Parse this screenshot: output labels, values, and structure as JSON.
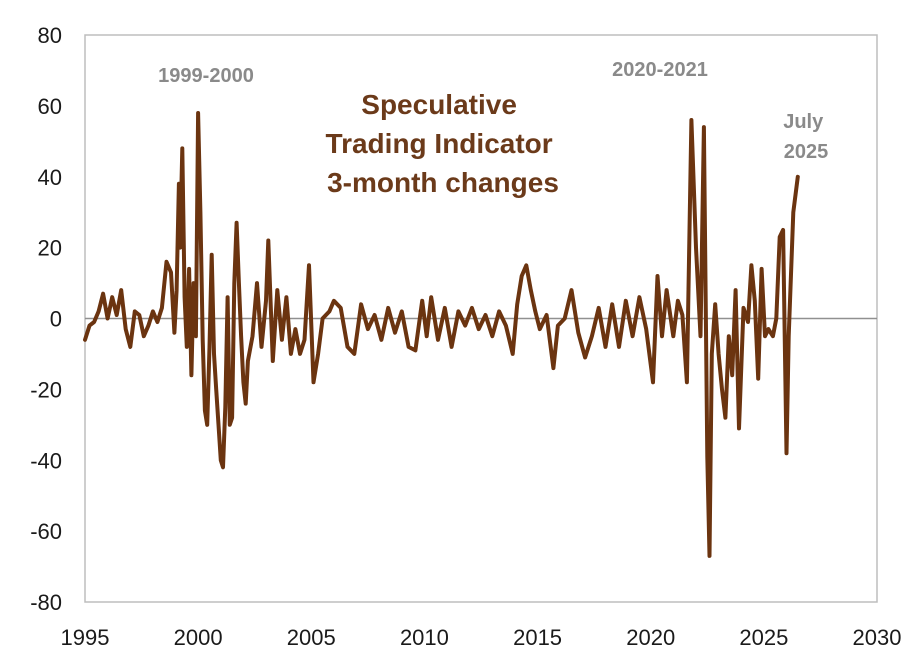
{
  "chart_data": {
    "type": "line",
    "title_lines": [
      "Speculative",
      "Trading Indicator",
      "3-month changes"
    ],
    "xlabel": "",
    "ylabel": "",
    "xlim": [
      1995,
      2030
    ],
    "ylim": [
      -80,
      80
    ],
    "x_ticks": [
      "1995",
      "2000",
      "2005",
      "2010",
      "2015",
      "2020",
      "2025",
      "2030"
    ],
    "y_ticks": [
      "80",
      "60",
      "40",
      "20",
      "0",
      "-20",
      "-40",
      "-60",
      "-80"
    ],
    "grid": false,
    "legend": "none",
    "line_color": "#6b3410",
    "annotations": [
      {
        "id": "annot-1999",
        "lines": [
          "1999-2000"
        ]
      },
      {
        "id": "annot-2020",
        "lines": [
          "2020-2021"
        ]
      },
      {
        "id": "annot-2025",
        "lines": [
          "July",
          "2025"
        ]
      }
    ],
    "series": [
      {
        "points": [
          [
            1995.0,
            -6
          ],
          [
            1995.2,
            -2
          ],
          [
            1995.4,
            -1
          ],
          [
            1995.6,
            2
          ],
          [
            1995.8,
            7
          ],
          [
            1996.0,
            0
          ],
          [
            1996.2,
            6
          ],
          [
            1996.4,
            1
          ],
          [
            1996.6,
            8
          ],
          [
            1996.8,
            -3
          ],
          [
            1997.0,
            -8
          ],
          [
            1997.2,
            2
          ],
          [
            1997.4,
            1
          ],
          [
            1997.6,
            -5
          ],
          [
            1997.8,
            -2
          ],
          [
            1998.0,
            2
          ],
          [
            1998.2,
            -1
          ],
          [
            1998.4,
            3
          ],
          [
            1998.6,
            16
          ],
          [
            1998.8,
            13
          ],
          [
            1998.95,
            -4
          ],
          [
            1999.05,
            8
          ],
          [
            1999.15,
            38
          ],
          [
            1999.2,
            20
          ],
          [
            1999.3,
            48
          ],
          [
            1999.4,
            6
          ],
          [
            1999.5,
            -8
          ],
          [
            1999.6,
            14
          ],
          [
            1999.7,
            -16
          ],
          [
            1999.8,
            10
          ],
          [
            1999.9,
            -5
          ],
          [
            2000.0,
            58
          ],
          [
            2000.1,
            30
          ],
          [
            2000.2,
            -6
          ],
          [
            2000.3,
            -26
          ],
          [
            2000.4,
            -30
          ],
          [
            2000.5,
            -8
          ],
          [
            2000.6,
            18
          ],
          [
            2000.7,
            -10
          ],
          [
            2000.8,
            -20
          ],
          [
            2000.9,
            -30
          ],
          [
            2001.0,
            -40
          ],
          [
            2001.1,
            -42
          ],
          [
            2001.2,
            -25
          ],
          [
            2001.3,
            6
          ],
          [
            2001.4,
            -30
          ],
          [
            2001.5,
            -28
          ],
          [
            2001.6,
            10
          ],
          [
            2001.7,
            27
          ],
          [
            2001.8,
            10
          ],
          [
            2001.9,
            -5
          ],
          [
            2002.0,
            -18
          ],
          [
            2002.1,
            -24
          ],
          [
            2002.2,
            -12
          ],
          [
            2002.4,
            -5
          ],
          [
            2002.6,
            10
          ],
          [
            2002.8,
            -8
          ],
          [
            2003.0,
            5
          ],
          [
            2003.1,
            22
          ],
          [
            2003.3,
            -12
          ],
          [
            2003.5,
            8
          ],
          [
            2003.7,
            -6
          ],
          [
            2003.9,
            6
          ],
          [
            2004.1,
            -10
          ],
          [
            2004.3,
            -3
          ],
          [
            2004.5,
            -10
          ],
          [
            2004.7,
            -6
          ],
          [
            2004.9,
            15
          ],
          [
            2005.1,
            -18
          ],
          [
            2005.3,
            -10
          ],
          [
            2005.5,
            0
          ],
          [
            2005.8,
            2
          ],
          [
            2006.0,
            5
          ],
          [
            2006.3,
            3
          ],
          [
            2006.6,
            -8
          ],
          [
            2006.9,
            -10
          ],
          [
            2007.2,
            4
          ],
          [
            2007.5,
            -3
          ],
          [
            2007.8,
            1
          ],
          [
            2008.1,
            -6
          ],
          [
            2008.4,
            3
          ],
          [
            2008.7,
            -4
          ],
          [
            2009.0,
            2
          ],
          [
            2009.3,
            -8
          ],
          [
            2009.6,
            -9
          ],
          [
            2009.9,
            5
          ],
          [
            2010.1,
            -5
          ],
          [
            2010.3,
            6
          ],
          [
            2010.6,
            -6
          ],
          [
            2010.9,
            3
          ],
          [
            2011.2,
            -8
          ],
          [
            2011.5,
            2
          ],
          [
            2011.8,
            -2
          ],
          [
            2012.1,
            3
          ],
          [
            2012.4,
            -3
          ],
          [
            2012.7,
            1
          ],
          [
            2013.0,
            -5
          ],
          [
            2013.3,
            2
          ],
          [
            2013.6,
            -2
          ],
          [
            2013.9,
            -10
          ],
          [
            2014.1,
            4
          ],
          [
            2014.3,
            12
          ],
          [
            2014.5,
            15
          ],
          [
            2014.7,
            8
          ],
          [
            2014.9,
            2
          ],
          [
            2015.1,
            -3
          ],
          [
            2015.4,
            1
          ],
          [
            2015.7,
            -14
          ],
          [
            2015.9,
            -2
          ],
          [
            2016.2,
            0
          ],
          [
            2016.5,
            8
          ],
          [
            2016.8,
            -4
          ],
          [
            2017.1,
            -11
          ],
          [
            2017.4,
            -5
          ],
          [
            2017.7,
            3
          ],
          [
            2018.0,
            -8
          ],
          [
            2018.3,
            4
          ],
          [
            2018.6,
            -8
          ],
          [
            2018.9,
            5
          ],
          [
            2019.2,
            -5
          ],
          [
            2019.5,
            6
          ],
          [
            2019.8,
            -3
          ],
          [
            2020.1,
            -18
          ],
          [
            2020.3,
            12
          ],
          [
            2020.5,
            -5
          ],
          [
            2020.7,
            8
          ],
          [
            2021.0,
            -5
          ],
          [
            2021.2,
            5
          ],
          [
            2021.4,
            1
          ],
          [
            2021.6,
            -18
          ],
          [
            2021.8,
            56
          ],
          [
            2022.0,
            20
          ],
          [
            2022.2,
            -5
          ],
          [
            2022.35,
            54
          ],
          [
            2022.5,
            -39
          ],
          [
            2022.6,
            -67
          ],
          [
            2022.7,
            -10
          ],
          [
            2022.85,
            4
          ],
          [
            2023.0,
            -10
          ],
          [
            2023.15,
            -20
          ],
          [
            2023.3,
            -28
          ],
          [
            2023.45,
            -5
          ],
          [
            2023.6,
            -16
          ],
          [
            2023.75,
            8
          ],
          [
            2023.9,
            -31
          ],
          [
            2024.1,
            3
          ],
          [
            2024.3,
            -1
          ],
          [
            2024.45,
            15
          ],
          [
            2024.6,
            5
          ],
          [
            2024.75,
            -17
          ],
          [
            2024.9,
            14
          ],
          [
            2025.05,
            -5
          ],
          [
            2025.2,
            -3
          ],
          [
            2025.4,
            -5
          ],
          [
            2025.55,
            0
          ],
          [
            2025.7,
            23
          ],
          [
            2025.85,
            25
          ],
          [
            2026.0,
            -38
          ],
          [
            2026.1,
            -5
          ],
          [
            2026.3,
            30
          ],
          [
            2026.5,
            40
          ]
        ]
      }
    ]
  }
}
